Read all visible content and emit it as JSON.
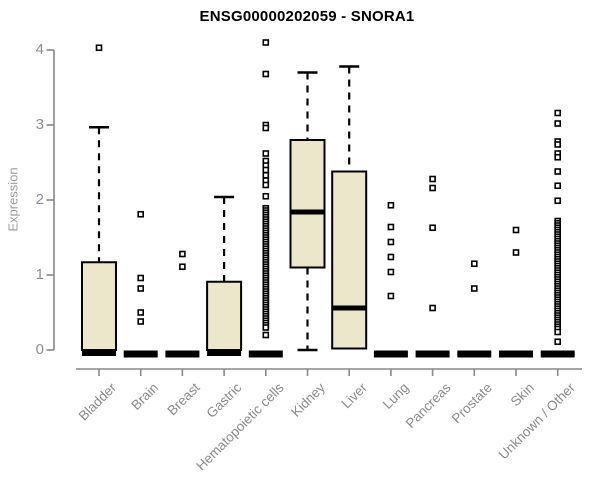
{
  "title": "ENSG00000202059 - SNORA1",
  "chart_data": {
    "type": "box",
    "title": "ENSG00000202059 - SNORA1",
    "ylabel": "Expression",
    "xlabel": "",
    "ylim": [
      0,
      4
    ],
    "yticks": [
      "0",
      "1",
      "2",
      "3",
      "4"
    ],
    "grid": false,
    "legend": "none",
    "box_fill": "#ece6cb",
    "box_stroke": "#000000",
    "axis_color": "#888888",
    "tick_label_color": "#8c8c9c",
    "category_label_color": "#8a8a8a",
    "categories": [
      "Bladder",
      "Brain",
      "Breast",
      "Gastric",
      "Hematopoietic cells",
      "Kidney",
      "Liver",
      "Lung",
      "Pancreas",
      "Prostate",
      "Skin",
      "Unknown / Other"
    ],
    "boxes": [
      {
        "category": "Bladder",
        "whisker_low": 0,
        "q1": 0,
        "median": 0,
        "q3": 1.17,
        "whisker_high": 2.97,
        "outliers": [
          4.03
        ]
      },
      {
        "category": "Brain",
        "whisker_low": 0,
        "q1": 0,
        "median": 0,
        "q3": 0,
        "whisker_high": 0,
        "outliers": [
          1.81,
          0.96,
          0.82,
          0.5,
          0.38
        ]
      },
      {
        "category": "Breast",
        "whisker_low": 0,
        "q1": 0,
        "median": 0,
        "q3": 0,
        "whisker_high": 0,
        "outliers": [
          1.28,
          1.11
        ]
      },
      {
        "category": "Gastric",
        "whisker_low": 0,
        "q1": 0,
        "median": 0,
        "q3": 0.91,
        "whisker_high": 2.04,
        "outliers": []
      },
      {
        "category": "Hematopoietic cells",
        "whisker_low": 0,
        "q1": 0,
        "median": 0,
        "q3": 0,
        "whisker_high": 0,
        "outliers": [
          4.1,
          3.68,
          3.0,
          2.96,
          2.62,
          2.52,
          2.46,
          2.4,
          2.33,
          2.26,
          2.2,
          2.05,
          1.89,
          1.86,
          1.83,
          1.8,
          1.77,
          1.74,
          1.71,
          1.68,
          1.65,
          1.62,
          1.59,
          1.56,
          1.53,
          1.5,
          1.47,
          1.44,
          1.41,
          1.38,
          1.35,
          1.32,
          1.29,
          1.26,
          1.23,
          1.2,
          1.17,
          1.14,
          1.11,
          1.08,
          1.05,
          1.02,
          0.99,
          0.96,
          0.93,
          0.9,
          0.87,
          0.84,
          0.81,
          0.78,
          0.75,
          0.72,
          0.69,
          0.66,
          0.63,
          0.6,
          0.57,
          0.54,
          0.51,
          0.48,
          0.45,
          0.42,
          0.39,
          0.36,
          0.33,
          0.3,
          0.2
        ]
      },
      {
        "category": "Kidney",
        "whisker_low": 0,
        "q1": 1.1,
        "median": 1.84,
        "q3": 2.8,
        "whisker_high": 3.7,
        "outliers": []
      },
      {
        "category": "Liver",
        "whisker_low": 0.02,
        "q1": 0.02,
        "median": 0.56,
        "q3": 2.38,
        "whisker_high": 3.78,
        "outliers": []
      },
      {
        "category": "Lung",
        "whisker_low": 0,
        "q1": 0,
        "median": 0,
        "q3": 0,
        "whisker_high": 0,
        "outliers": [
          1.93,
          1.64,
          1.44,
          1.24,
          1.04,
          0.72
        ]
      },
      {
        "category": "Pancreas",
        "whisker_low": 0,
        "q1": 0,
        "median": 0,
        "q3": 0,
        "whisker_high": 0,
        "outliers": [
          2.28,
          2.16,
          1.63,
          0.56
        ]
      },
      {
        "category": "Prostate",
        "whisker_low": 0,
        "q1": 0,
        "median": 0,
        "q3": 0,
        "whisker_high": 0,
        "outliers": [
          1.15,
          0.82
        ]
      },
      {
        "category": "Skin",
        "whisker_low": 0,
        "q1": 0,
        "median": 0,
        "q3": 0,
        "whisker_high": 0,
        "outliers": [
          1.6,
          1.3
        ]
      },
      {
        "category": "Unknown / Other",
        "whisker_low": 0,
        "q1": 0,
        "median": 0,
        "q3": 0,
        "whisker_high": 0,
        "outliers": [
          3.16,
          3.02,
          2.78,
          2.74,
          2.62,
          2.57,
          2.38,
          2.19,
          1.99,
          1.72,
          1.69,
          1.66,
          1.63,
          1.6,
          1.57,
          1.54,
          1.51,
          1.48,
          1.45,
          1.42,
          1.39,
          1.36,
          1.33,
          1.3,
          1.27,
          1.24,
          1.21,
          1.18,
          1.15,
          1.12,
          1.09,
          1.06,
          1.03,
          1.0,
          0.97,
          0.94,
          0.91,
          0.88,
          0.85,
          0.82,
          0.79,
          0.76,
          0.73,
          0.7,
          0.67,
          0.64,
          0.61,
          0.58,
          0.55,
          0.52,
          0.49,
          0.46,
          0.43,
          0.4,
          0.37,
          0.34,
          0.31,
          0.28,
          0.24,
          0.11
        ]
      }
    ]
  }
}
